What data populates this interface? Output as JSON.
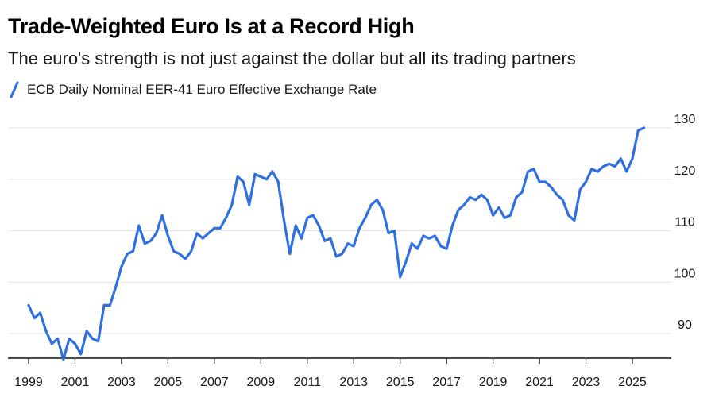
{
  "header": {
    "title": "Trade-Weighted Euro Is at a Record High",
    "subtitle": "The euro's strength is not just against the dollar but all its trading partners"
  },
  "legend": {
    "items": [
      {
        "label": "ECB Daily Nominal EER-41 Euro Effective Exchange Rate",
        "color": "#2f6fe0"
      }
    ]
  },
  "chart_data": {
    "type": "line",
    "title": "Trade-Weighted Euro Is at a Record High",
    "subtitle": "The euro's strength is not just against the dollar but all its trading partners",
    "xlabel": "",
    "ylabel": "",
    "x_ticks": [
      1999,
      2001,
      2003,
      2005,
      2007,
      2009,
      2011,
      2013,
      2015,
      2017,
      2019,
      2021,
      2023,
      2025
    ],
    "y_ticks": [
      90,
      100,
      110,
      120,
      130
    ],
    "xlim": [
      1998.6,
      2026.9
    ],
    "ylim": [
      85,
      131
    ],
    "grid": "horizontal",
    "y_axis_position": "right",
    "legend_position": "top-left",
    "series": [
      {
        "name": "ECB Daily Nominal EER-41 Euro Effective Exchange Rate",
        "color": "#2f6fe0",
        "x": [
          1999.0,
          1999.25,
          1999.5,
          1999.75,
          2000.0,
          2000.25,
          2000.5,
          2000.75,
          2001.0,
          2001.25,
          2001.5,
          2001.75,
          2002.0,
          2002.25,
          2002.5,
          2002.75,
          2003.0,
          2003.25,
          2003.5,
          2003.75,
          2004.0,
          2004.25,
          2004.5,
          2004.75,
          2005.0,
          2005.25,
          2005.5,
          2005.75,
          2006.0,
          2006.25,
          2006.5,
          2006.75,
          2007.0,
          2007.25,
          2007.5,
          2007.75,
          2008.0,
          2008.25,
          2008.5,
          2008.75,
          2009.0,
          2009.25,
          2009.5,
          2009.75,
          2010.0,
          2010.25,
          2010.5,
          2010.75,
          2011.0,
          2011.25,
          2011.5,
          2011.75,
          2012.0,
          2012.25,
          2012.5,
          2012.75,
          2013.0,
          2013.25,
          2013.5,
          2013.75,
          2014.0,
          2014.25,
          2014.5,
          2014.75,
          2015.0,
          2015.25,
          2015.5,
          2015.75,
          2016.0,
          2016.25,
          2016.5,
          2016.75,
          2017.0,
          2017.25,
          2017.5,
          2017.75,
          2018.0,
          2018.25,
          2018.5,
          2018.75,
          2019.0,
          2019.25,
          2019.5,
          2019.75,
          2020.0,
          2020.25,
          2020.5,
          2020.75,
          2021.0,
          2021.25,
          2021.5,
          2021.75,
          2022.0,
          2022.25,
          2022.5,
          2022.75,
          2023.0,
          2023.25,
          2023.5,
          2023.75,
          2024.0,
          2024.25,
          2024.5,
          2024.75,
          2025.0,
          2025.25,
          2025.5
        ],
        "y": [
          95.5,
          93.0,
          94.0,
          90.5,
          88.0,
          89.0,
          85.0,
          89.0,
          88.0,
          86.0,
          90.5,
          89.0,
          88.5,
          95.5,
          95.5,
          99.0,
          103.0,
          105.5,
          106.0,
          111.0,
          107.5,
          108.0,
          109.5,
          113.0,
          109.0,
          106.0,
          105.5,
          104.5,
          106.0,
          109.5,
          108.5,
          109.5,
          110.5,
          110.5,
          112.5,
          115.0,
          120.5,
          119.5,
          115.0,
          121.0,
          120.5,
          120.0,
          121.5,
          119.5,
          112.0,
          105.5,
          111.0,
          108.5,
          112.5,
          113.0,
          111.0,
          108.0,
          108.5,
          105.0,
          105.5,
          107.5,
          107.0,
          110.5,
          112.5,
          115.0,
          116.0,
          114.0,
          109.5,
          110.0,
          101.0,
          104.0,
          107.5,
          106.5,
          109.0,
          108.5,
          109.0,
          107.0,
          106.5,
          111.0,
          114.0,
          115.0,
          116.5,
          116.0,
          117.0,
          116.0,
          113.0,
          114.5,
          112.5,
          113.0,
          116.5,
          117.5,
          121.5,
          122.0,
          119.5,
          119.5,
          118.5,
          117.0,
          116.0,
          113.0,
          112.0,
          118.0,
          119.5,
          122.0,
          121.5,
          122.5,
          123.0,
          122.5,
          124.0,
          121.5,
          124.0,
          129.5,
          130.0
        ]
      }
    ]
  }
}
